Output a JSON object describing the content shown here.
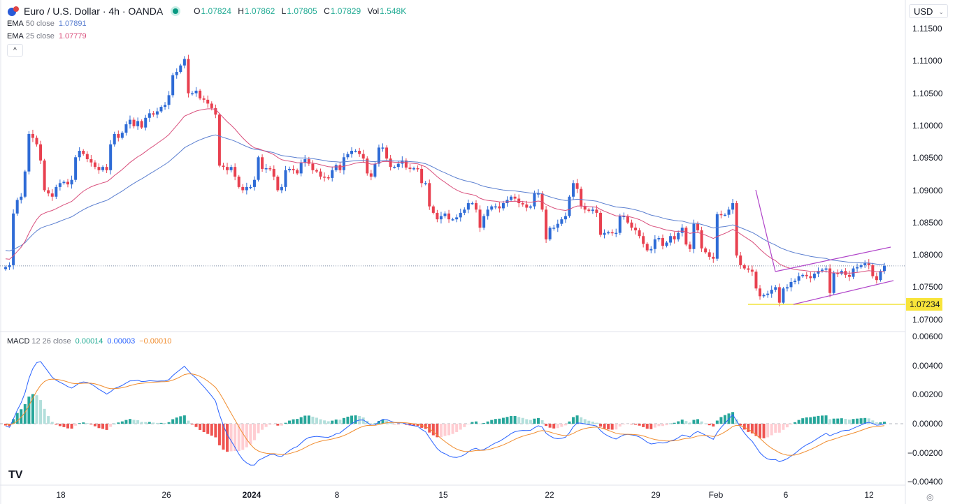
{
  "header": {
    "symbol_title": "Euro / U.S. Dollar · 4h · OANDA",
    "status": "market-open",
    "ohlc": [
      {
        "k": "O",
        "v": "1.07824"
      },
      {
        "k": "H",
        "v": "1.07862"
      },
      {
        "k": "L",
        "v": "1.07805"
      },
      {
        "k": "C",
        "v": "1.07829"
      },
      {
        "k": "Vol",
        "v": "1.548K"
      }
    ],
    "collapse_label": "^",
    "currency": "USD"
  },
  "indicators": {
    "ema50": {
      "name": "EMA",
      "params": "50 close",
      "value": "1.07891",
      "color": "#5b7fd0"
    },
    "ema25": {
      "name": "EMA",
      "params": "25 close",
      "value": "1.07779",
      "color": "#d94f7c"
    },
    "macd": {
      "name": "MACD",
      "params": "12 26 close",
      "hist": "0.00014",
      "macd": "0.00003",
      "signal": "−0.00010"
    }
  },
  "colors": {
    "up": "#2e6bd6",
    "down": "#e8404f",
    "macd_line": "#2962ff",
    "signal_line": "#f08c2e",
    "hist_up_strong": "#26a69a",
    "hist_up_weak": "#b2dfdb",
    "hist_down_strong": "#ef5350",
    "hist_down_weak": "#ffcdd2",
    "support": "#f2e33a",
    "channel": "#b044c9"
  },
  "chart_data": [
    {
      "type": "candlestick",
      "title": "Euro / U.S. Dollar · 4h · OANDA",
      "x_ticks": [
        "18",
        "26",
        "2024",
        "8",
        "15",
        "22",
        "29",
        "Feb",
        "6",
        "12"
      ],
      "y_ticks": [
        "1.11500",
        "1.11000",
        "1.10500",
        "1.10000",
        "1.09500",
        "1.09000",
        "1.08500",
        "1.08000",
        "1.07500",
        "1.07000"
      ],
      "ylim": [
        1.0695,
        1.1165
      ],
      "current_price": 1.07829,
      "support_level": {
        "value": 1.07234,
        "label": "1.07234"
      },
      "overlays": [
        "EMA 50",
        "EMA 25",
        "rising channel",
        "trend line"
      ],
      "close": [
        1.0781,
        1.0784,
        1.0864,
        1.0885,
        1.089,
        1.0929,
        1.0987,
        1.0981,
        1.0971,
        1.0946,
        1.09,
        1.0895,
        1.089,
        1.0905,
        1.0911,
        1.0913,
        1.0909,
        1.0916,
        1.0951,
        1.0961,
        1.0956,
        1.0948,
        1.0943,
        1.0936,
        1.0931,
        1.0936,
        1.0931,
        1.0971,
        1.0987,
        1.0981,
        1.0989,
        1.1002,
        1.1009,
        1.0999,
        1.1007,
        1.0997,
        1.1012,
        1.1019,
        1.1017,
        1.1022,
        1.1029,
        1.1032,
        1.1047,
        1.1078,
        1.1083,
        1.1093,
        1.1103,
        1.105,
        1.105,
        1.1054,
        1.1042,
        1.104,
        1.1034,
        1.1027,
        1.1017,
        1.0938,
        1.0936,
        1.0931,
        1.0936,
        1.0921,
        1.0905,
        1.09,
        1.0905,
        1.0905,
        1.0916,
        1.0951,
        1.0933,
        1.0934,
        1.0933,
        1.0921,
        1.09,
        1.0905,
        1.0931,
        1.0933,
        1.0931,
        1.0926,
        1.0943,
        1.0948,
        1.0941,
        1.0931,
        1.0929,
        1.0921,
        1.092,
        1.0919,
        1.0931,
        1.0939,
        1.0931,
        1.0951,
        1.0956,
        1.0961,
        1.0961,
        1.0956,
        1.0949,
        1.0926,
        1.0921,
        1.0941,
        1.0966,
        1.0966,
        1.0949,
        1.0936,
        1.0936,
        1.0941,
        1.0946,
        1.0935,
        1.0933,
        1.0934,
        1.0933,
        1.0911,
        1.0911,
        1.0875,
        1.0865,
        1.0855,
        1.086,
        1.0864,
        1.0855,
        1.0855,
        1.0858,
        1.0865,
        1.087,
        1.088,
        1.088,
        1.087,
        1.0842,
        1.086,
        1.087,
        1.0875,
        1.0875,
        1.0872,
        1.088,
        1.0885,
        1.089,
        1.0887,
        1.088,
        1.0878,
        1.0873,
        1.0875,
        1.0895,
        1.0895,
        1.087,
        1.0824,
        1.0842,
        1.0842,
        1.0848,
        1.0855,
        1.086,
        1.089,
        1.0911,
        1.0902,
        1.0875,
        1.087,
        1.0868,
        1.087,
        1.0865,
        1.0831,
        1.0834,
        1.0835,
        1.0834,
        1.0834,
        1.086,
        1.086,
        1.085,
        1.0842,
        1.0838,
        1.0829,
        1.0817,
        1.0807,
        1.0809,
        1.0824,
        1.0826,
        1.0814,
        1.0819,
        1.0829,
        1.0824,
        1.0834,
        1.0842,
        1.0816,
        1.0809,
        1.0848,
        1.0838,
        1.081,
        1.0804,
        1.0797,
        1.0794,
        1.0863,
        1.0862,
        1.0862,
        1.087,
        1.088,
        1.0799,
        1.0784,
        1.0779,
        1.0777,
        1.0774,
        1.0748,
        1.0736,
        1.0738,
        1.074,
        1.0746,
        1.075,
        1.0726,
        1.0748,
        1.075,
        1.0758,
        1.076,
        1.0767,
        1.0769,
        1.0767,
        1.0764,
        1.0771,
        1.0775,
        1.0777,
        1.0779,
        1.0741,
        1.0772,
        1.0771,
        1.0775,
        1.0769,
        1.0766,
        1.0779,
        1.0781,
        1.0784,
        1.0787,
        1.0784,
        1.0767,
        1.0761,
        1.0775,
        1.0783
      ]
    },
    {
      "type": "line",
      "title": "MACD 12 26 close",
      "y_ticks": [
        "0.00600",
        "0.00400",
        "0.00200",
        "0.00000",
        "−0.00200",
        "−0.00400"
      ],
      "ylim": [
        -0.0042,
        0.0063
      ],
      "series": [
        "histogram",
        "MACD",
        "signal"
      ]
    }
  ]
}
